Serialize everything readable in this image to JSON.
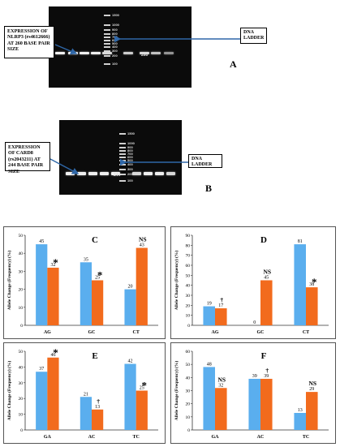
{
  "gel_a": {
    "label": "EXPRESSION OF NLRP3 (rs4612666) AT 260 BASE PAIR SIZE",
    "ladder_label": "DNA LADDER",
    "panel": "A",
    "band_size_label": "260",
    "ladder_ticks": [
      "1500",
      "1000",
      "900",
      "800",
      "700",
      "600",
      "500",
      "400",
      "300",
      "200",
      "100"
    ]
  },
  "gel_b": {
    "label": "EXPRESSION OF CARD8 (rs2043211) AT 244 BASE PAIR SIZE",
    "ladder_label": "DNA LADDER",
    "panel": "B",
    "band_size_label": "244",
    "ladder_ticks": [
      "1500",
      "1000",
      "900",
      "800",
      "700",
      "600",
      "500",
      "400",
      "300",
      "200",
      "100"
    ]
  },
  "colors": {
    "blue": "#5aaeee",
    "orange": "#f26b1d"
  },
  "chart_data": [
    {
      "type": "bar",
      "panel": "C",
      "ylabel": "Allele Change (Frequency) (%)",
      "ylim": [
        0,
        50
      ],
      "yticks": [
        0,
        10,
        20,
        30,
        40,
        50
      ],
      "categories": [
        "AG",
        "GC",
        "CT"
      ],
      "series": [
        {
          "values": [
            45,
            35,
            20
          ]
        },
        {
          "values": [
            32,
            25,
            43
          ]
        }
      ],
      "annotations": [
        {
          "category": "AG",
          "series": 1,
          "text": "*"
        },
        {
          "category": "GC",
          "series": 1,
          "text": "*"
        },
        {
          "category": "CT",
          "series": 1,
          "text": "NS"
        }
      ]
    },
    {
      "type": "bar",
      "panel": "D",
      "ylabel": "Allele Change (Frequency) (%)",
      "ylim": [
        0,
        90
      ],
      "yticks": [
        0,
        10,
        20,
        30,
        40,
        50,
        60,
        70,
        80,
        90
      ],
      "categories": [
        "AG",
        "GC",
        "CT"
      ],
      "series": [
        {
          "values": [
            19,
            0,
            81
          ]
        },
        {
          "values": [
            17,
            45,
            38
          ]
        }
      ],
      "annotations": [
        {
          "category": "AG",
          "series": 1,
          "text": "†"
        },
        {
          "category": "GC",
          "series": 1,
          "text": "NS"
        },
        {
          "category": "CT",
          "series": 1,
          "text": "*"
        }
      ]
    },
    {
      "type": "bar",
      "panel": "E",
      "ylabel": "Allele Change (Frequency) (%)",
      "ylim": [
        0,
        50
      ],
      "yticks": [
        0,
        10,
        20,
        30,
        40,
        50
      ],
      "categories": [
        "GA",
        "AC",
        "TC"
      ],
      "series": [
        {
          "values": [
            37,
            21,
            42
          ]
        },
        {
          "values": [
            46,
            13,
            25
          ]
        }
      ],
      "annotations": [
        {
          "category": "GA",
          "series": 1,
          "text": "*"
        },
        {
          "category": "AC",
          "series": 1,
          "text": "†"
        },
        {
          "category": "TC",
          "series": 1,
          "text": "*"
        }
      ]
    },
    {
      "type": "bar",
      "panel": "F",
      "ylabel": "Allele Change (Frequency) (%)",
      "ylim": [
        0,
        60
      ],
      "yticks": [
        0,
        10,
        20,
        30,
        40,
        50,
        60
      ],
      "categories": [
        "GA",
        "AC",
        "TC"
      ],
      "series": [
        {
          "values": [
            48,
            39,
            13
          ]
        },
        {
          "values": [
            32,
            39,
            29
          ]
        }
      ],
      "annotations": [
        {
          "category": "GA",
          "series": 1,
          "text": "NS"
        },
        {
          "category": "AC",
          "series": 1,
          "text": "†"
        },
        {
          "category": "TC",
          "series": 1,
          "text": "NS"
        }
      ]
    }
  ]
}
